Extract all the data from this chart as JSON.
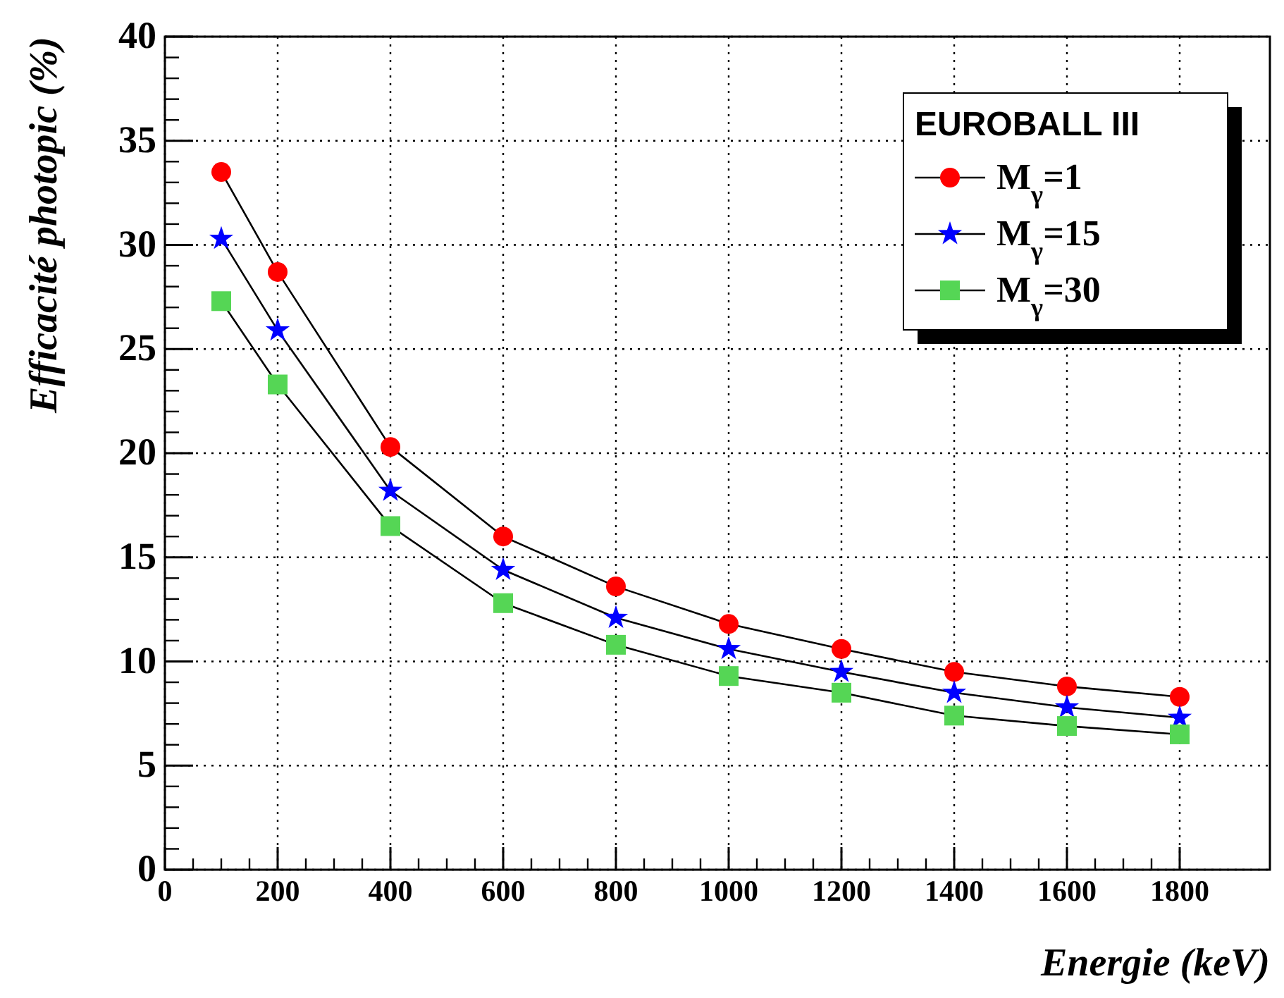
{
  "chart_data": {
    "type": "line",
    "xlabel": "Energie (keV)",
    "ylabel": "Efficacité photopic (%)",
    "legend_title": "EUROBALL III",
    "x": [
      100,
      200,
      400,
      600,
      800,
      1000,
      1200,
      1400,
      1600,
      1800
    ],
    "series": [
      {
        "name": "M$_{γ}$=1",
        "color": "#ff0000",
        "marker": "circle",
        "values": [
          33.5,
          28.7,
          20.3,
          16.0,
          13.6,
          11.8,
          10.6,
          9.5,
          8.8,
          8.3
        ]
      },
      {
        "name": "M$_{γ}$=15",
        "color": "#0000ff",
        "marker": "star",
        "values": [
          30.3,
          25.9,
          18.2,
          14.4,
          12.1,
          10.6,
          9.5,
          8.5,
          7.8,
          7.3
        ]
      },
      {
        "name": "M$_{γ}$=30",
        "color": "#55d655",
        "marker": "square",
        "values": [
          27.3,
          23.3,
          16.5,
          12.8,
          10.8,
          9.3,
          8.5,
          7.4,
          6.9,
          6.5
        ]
      }
    ],
    "xlim": [
      0,
      1960
    ],
    "ylim": [
      0,
      40
    ],
    "xticks": [
      0,
      200,
      400,
      600,
      800,
      1000,
      1200,
      1400,
      1600,
      1800
    ],
    "yticks": [
      0,
      5,
      10,
      15,
      20,
      25,
      30,
      35,
      40
    ],
    "grid": true,
    "legend": "top right"
  }
}
